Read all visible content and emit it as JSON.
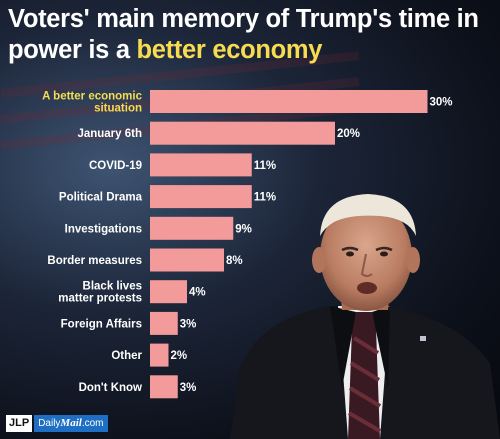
{
  "title": {
    "part1": "Voters' main memory of Trump's time in power is a ",
    "highlight": "better economy"
  },
  "colors": {
    "bar": "#f39a9a",
    "label": "#ffffff",
    "highlight_label": "#f7dc52",
    "title_highlight": "#f7dc52"
  },
  "chart_data": {
    "type": "bar",
    "orientation": "horizontal",
    "categories": [
      "A better economic situation",
      "January 6th",
      "COVID-19",
      "Political Drama",
      "Investigations",
      "Border measures",
      "Black lives matter protests",
      "Foreign Affairs",
      "Other",
      "Don't Know"
    ],
    "values": [
      30,
      20,
      11,
      11,
      9,
      8,
      4,
      3,
      2,
      3
    ],
    "value_labels": [
      "30%",
      "20%",
      "11%",
      "11%",
      "9%",
      "8%",
      "4%",
      "3%",
      "2%",
      "3%"
    ],
    "highlight_index": 0,
    "xlim": [
      0,
      30
    ],
    "grid": false,
    "legend": "none"
  },
  "footer": {
    "logo_left": "JLP",
    "logo_right_a": "Daily",
    "logo_right_b": "Mail",
    "logo_right_c": ".com"
  }
}
